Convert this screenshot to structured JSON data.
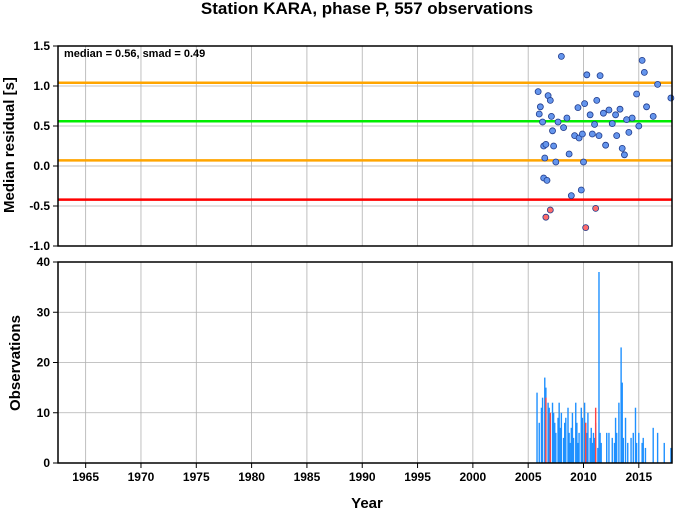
{
  "chart_data": [
    {
      "type": "scatter",
      "title": "Station KARA, phase P, 557 observations",
      "xlabel": "",
      "ylabel": "Median residual [s]",
      "annotation": "median = 0.56, smad = 0.49",
      "xlim": [
        1962.5,
        2018
      ],
      "ylim": [
        -1.0,
        1.5
      ],
      "yticks": [
        "-1.0",
        "-0.5",
        "0.0",
        "0.5",
        "1.0",
        "1.5"
      ],
      "grid": true,
      "reference_lines": [
        {
          "y": 1.04,
          "color": "#ffa500"
        },
        {
          "y": 0.56,
          "color": "#00ee00"
        },
        {
          "y": 0.07,
          "color": "#ffa500"
        },
        {
          "y": -0.42,
          "color": "#ff0000"
        }
      ],
      "series": [
        {
          "color": "#6495ed",
          "points": [
            [
              2005.9,
              0.93
            ],
            [
              2006.0,
              0.65
            ],
            [
              2006.1,
              0.74
            ],
            [
              2006.3,
              0.55
            ],
            [
              2006.4,
              0.25
            ],
            [
              2006.5,
              0.1
            ],
            [
              2006.6,
              0.27
            ],
            [
              2006.4,
              -0.15
            ],
            [
              2006.7,
              -0.18
            ],
            [
              2006.8,
              0.88
            ],
            [
              2007.0,
              0.82
            ],
            [
              2007.1,
              0.62
            ],
            [
              2007.2,
              0.44
            ],
            [
              2007.3,
              0.25
            ],
            [
              2007.5,
              0.05
            ],
            [
              2007.7,
              0.55
            ],
            [
              2008.0,
              1.37
            ],
            [
              2008.2,
              0.48
            ],
            [
              2008.5,
              0.6
            ],
            [
              2008.7,
              0.15
            ],
            [
              2008.9,
              -0.37
            ],
            [
              2009.2,
              0.38
            ],
            [
              2009.5,
              0.73
            ],
            [
              2009.6,
              0.35
            ],
            [
              2009.8,
              -0.3
            ],
            [
              2009.9,
              0.4
            ],
            [
              2010.0,
              0.05
            ],
            [
              2010.1,
              0.78
            ],
            [
              2010.3,
              1.14
            ],
            [
              2010.6,
              0.64
            ],
            [
              2010.8,
              0.4
            ],
            [
              2011.0,
              0.52
            ],
            [
              2011.2,
              0.82
            ],
            [
              2011.4,
              0.38
            ],
            [
              2011.5,
              1.13
            ],
            [
              2011.8,
              0.66
            ],
            [
              2012.0,
              0.26
            ],
            [
              2012.3,
              0.7
            ],
            [
              2012.6,
              0.53
            ],
            [
              2012.9,
              0.64
            ],
            [
              2013.0,
              0.38
            ],
            [
              2013.3,
              0.71
            ],
            [
              2013.5,
              0.22
            ],
            [
              2013.7,
              0.14
            ],
            [
              2013.9,
              0.58
            ],
            [
              2014.1,
              0.42
            ],
            [
              2014.4,
              0.6
            ],
            [
              2014.8,
              0.9
            ],
            [
              2015.0,
              0.5
            ],
            [
              2015.3,
              1.32
            ],
            [
              2015.5,
              1.17
            ],
            [
              2015.7,
              0.74
            ],
            [
              2016.3,
              0.62
            ],
            [
              2016.7,
              1.02
            ],
            [
              2017.9,
              0.85
            ]
          ]
        },
        {
          "color": "#ff6b6b",
          "points": [
            [
              2006.6,
              -0.64
            ],
            [
              2007.0,
              -0.55
            ],
            [
              2010.2,
              -0.77
            ],
            [
              2011.1,
              -0.53
            ]
          ]
        }
      ]
    },
    {
      "type": "bar",
      "title": "",
      "xlabel": "Year",
      "ylabel": "Observations",
      "xlim": [
        1962.5,
        2018
      ],
      "ylim": [
        0,
        40
      ],
      "xticks": [
        "1965",
        "1970",
        "1975",
        "1980",
        "1985",
        "1990",
        "1995",
        "2000",
        "2005",
        "2010",
        "2015"
      ],
      "yticks": [
        "0",
        "10",
        "20",
        "30",
        "40"
      ],
      "grid": true,
      "series": [
        {
          "color": "#1e90ff",
          "bars": [
            [
              2005.8,
              14
            ],
            [
              2006.0,
              8
            ],
            [
              2006.2,
              11
            ],
            [
              2006.3,
              13
            ],
            [
              2006.5,
              17
            ],
            [
              2006.6,
              15
            ],
            [
              2006.8,
              12
            ],
            [
              2006.9,
              11
            ],
            [
              2007.0,
              9
            ],
            [
              2007.2,
              12
            ],
            [
              2007.3,
              10
            ],
            [
              2007.4,
              8
            ],
            [
              2007.5,
              6
            ],
            [
              2007.7,
              9
            ],
            [
              2007.8,
              12
            ],
            [
              2007.9,
              7
            ],
            [
              2008.0,
              10
            ],
            [
              2008.2,
              5
            ],
            [
              2008.3,
              8
            ],
            [
              2008.4,
              9
            ],
            [
              2008.6,
              11
            ],
            [
              2008.7,
              6
            ],
            [
              2008.8,
              4
            ],
            [
              2008.9,
              7
            ],
            [
              2009.0,
              10
            ],
            [
              2009.1,
              5
            ],
            [
              2009.3,
              12
            ],
            [
              2009.4,
              8
            ],
            [
              2009.5,
              4
            ],
            [
              2009.6,
              6
            ],
            [
              2009.8,
              11
            ],
            [
              2009.9,
              9
            ],
            [
              2010.1,
              12
            ],
            [
              2010.2,
              8
            ],
            [
              2010.3,
              6
            ],
            [
              2010.4,
              10
            ],
            [
              2010.6,
              5
            ],
            [
              2010.7,
              7
            ],
            [
              2010.8,
              4
            ],
            [
              2010.9,
              6
            ],
            [
              2011.0,
              5
            ],
            [
              2011.1,
              8
            ],
            [
              2011.3,
              3
            ],
            [
              2011.4,
              38
            ],
            [
              2011.5,
              6
            ],
            [
              2011.6,
              4
            ],
            [
              2012.1,
              6
            ],
            [
              2012.3,
              6
            ],
            [
              2012.6,
              5
            ],
            [
              2012.8,
              4
            ],
            [
              2012.9,
              9
            ],
            [
              2013.0,
              6
            ],
            [
              2013.2,
              12
            ],
            [
              2013.4,
              23
            ],
            [
              2013.5,
              16
            ],
            [
              2013.6,
              5
            ],
            [
              2013.8,
              9
            ],
            [
              2014.0,
              4
            ],
            [
              2014.3,
              5
            ],
            [
              2014.5,
              6
            ],
            [
              2014.7,
              11
            ],
            [
              2014.8,
              4
            ],
            [
              2015.0,
              6
            ],
            [
              2015.3,
              4
            ],
            [
              2015.4,
              5
            ],
            [
              2015.6,
              3
            ],
            [
              2016.3,
              7
            ],
            [
              2016.7,
              6
            ],
            [
              2017.3,
              4
            ],
            [
              2017.9,
              3
            ]
          ]
        },
        {
          "color": "#ff4444",
          "bars": [
            [
              2006.6,
              13
            ],
            [
              2007.0,
              10
            ],
            [
              2010.2,
              8
            ],
            [
              2011.1,
              11
            ]
          ]
        }
      ]
    }
  ]
}
